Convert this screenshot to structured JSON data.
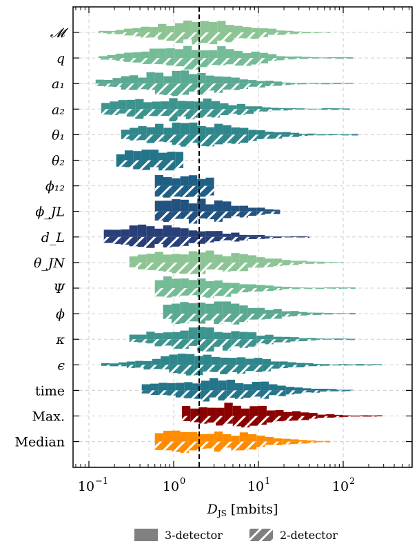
{
  "chart_data": {
    "type": "violin-histogram",
    "xlabel": "D_JS [mbits]",
    "xlabel_main": "D",
    "xlabel_sub": "JS",
    "xlabel_unit": " [mbits]",
    "xscale": "log",
    "xlim": [
      0.065,
      650
    ],
    "xticks": [
      {
        "value": 0.1,
        "mant": "10",
        "exp": "−1"
      },
      {
        "value": 1,
        "mant": "10",
        "exp": "0"
      },
      {
        "value": 10,
        "mant": "10",
        "exp": "1"
      },
      {
        "value": 100,
        "mant": "10",
        "exp": "2"
      }
    ],
    "threshold": 2.0,
    "grid": true,
    "legend": {
      "placement": "bottom",
      "entries": [
        {
          "label": "3-detector",
          "style": "solid"
        },
        {
          "label": "2-detector",
          "style": "hatched"
        }
      ]
    },
    "rows": [
      {
        "label": "𝓜",
        "color": "#8cc494",
        "range": [
          0.13,
          70
        ],
        "peak": 2.0
      },
      {
        "label": "q",
        "color": "#74bc96",
        "range": [
          0.13,
          130
        ],
        "peak": 1.8
      },
      {
        "label": "a₁",
        "color": "#5aa992",
        "range": [
          0.12,
          130
        ],
        "peak": 1.1
      },
      {
        "label": "a₂",
        "color": "#3d948e",
        "range": [
          0.14,
          120
        ],
        "peak": 0.9
      },
      {
        "label": "θ₁",
        "color": "#2f878b",
        "range": [
          0.24,
          150
        ],
        "peak": 1.7
      },
      {
        "label": "θ₂",
        "color": "#24748a",
        "range": [
          0.21,
          1.3
        ],
        "peak": 0.8
      },
      {
        "label": "ϕ₁₂",
        "color": "#1f5f86",
        "range": [
          0.6,
          3.0
        ],
        "peak": 1.0
      },
      {
        "label": "ϕ_JL",
        "color": "#22527f",
        "range": [
          0.6,
          18
        ],
        "peak": 1.5
      },
      {
        "label": "d_L",
        "color": "#283f78",
        "range": [
          0.15,
          40
        ],
        "peak": 0.7
      },
      {
        "label": "θ_JN",
        "color": "#8cc494",
        "range": [
          0.3,
          100
        ],
        "peak": 1.8
      },
      {
        "label": "Ψ",
        "color": "#74bc96",
        "range": [
          0.6,
          140
        ],
        "peak": 1.4
      },
      {
        "label": "ϕ",
        "color": "#5aa992",
        "range": [
          0.75,
          140
        ],
        "peak": 2.3
      },
      {
        "label": "κ",
        "color": "#3d948e",
        "range": [
          0.3,
          140
        ],
        "peak": 2.1
      },
      {
        "label": "ϵ",
        "color": "#2f878b",
        "range": [
          0.14,
          280
        ],
        "peak": 2.5
      },
      {
        "label": "time",
        "color": "#24748a",
        "range": [
          0.42,
          130
        ],
        "peak": 3.0
      },
      {
        "label": "Max.",
        "color": "#8b0000",
        "range": [
          1.25,
          290
        ],
        "peak": 4.0
      },
      {
        "label": "Median",
        "color": "#ff8c00",
        "range": [
          0.6,
          70
        ],
        "peak": 1.9
      }
    ]
  }
}
